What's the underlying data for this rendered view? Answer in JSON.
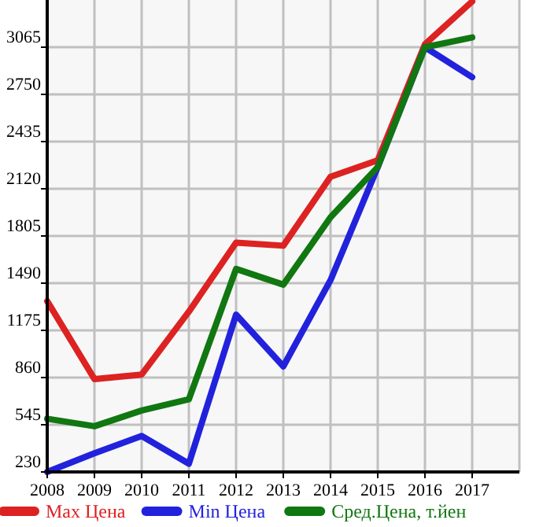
{
  "chart_data": {
    "type": "line",
    "x": [
      2008,
      2009,
      2010,
      2011,
      2012,
      2013,
      2014,
      2015,
      2016,
      2017
    ],
    "series": [
      {
        "name": "Max Цена",
        "color": "#dd2222",
        "values": [
          1370,
          850,
          880,
          1300,
          1760,
          1740,
          2200,
          2310,
          3085,
          3370
        ]
      },
      {
        "name": "Min Цена",
        "color": "#2222dd",
        "values": [
          230,
          355,
          470,
          285,
          1280,
          935,
          1510,
          2265,
          3065,
          2865
        ]
      },
      {
        "name": "Сред.Цена, т.йен",
        "color": "#117711",
        "values": [
          585,
          535,
          640,
          715,
          1585,
          1480,
          1930,
          2265,
          3065,
          3130
        ]
      }
    ],
    "xlim": [
      2008,
      2018
    ],
    "xticks": [
      2008,
      2009,
      2010,
      2011,
      2012,
      2013,
      2014,
      2015,
      2016,
      2017
    ],
    "ylim": [
      230,
      3380
    ],
    "yticks": [
      230,
      545,
      860,
      1175,
      1490,
      1805,
      2120,
      2435,
      2750,
      3065
    ],
    "grid": true,
    "legend": "bottom",
    "marker": "none",
    "line_style": "solid"
  }
}
